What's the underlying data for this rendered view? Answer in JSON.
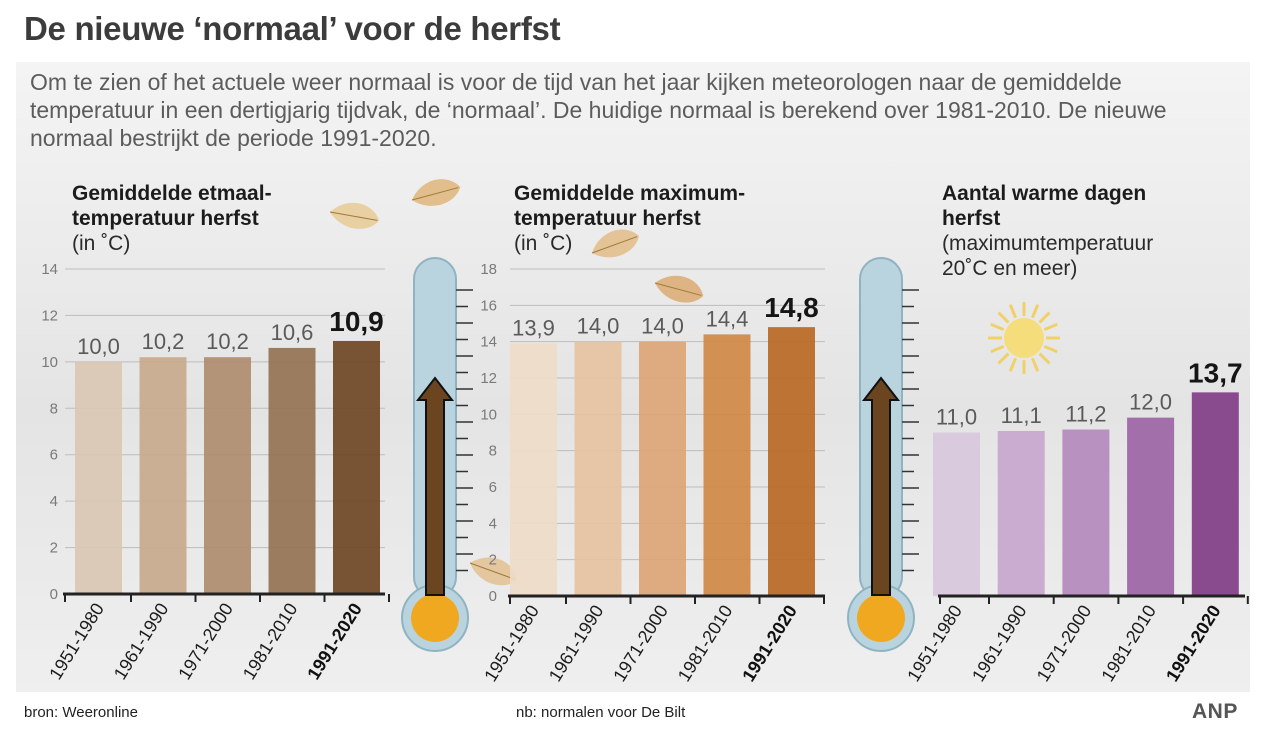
{
  "title": "De nieuwe ‘normaal’ voor de herfst",
  "intro": "Om te zien of het actuele weer normaal is voor de tijd van het jaar kijken meteorologen naar de gemiddelde temperatuur in een dertigjarig tijdvak, de ‘normaal’. De huidige normaal is berekend over 1981-2010. De nieuwe normaal bestrijkt de periode 1991-2020.",
  "footer": {
    "source": "bron:  Weeronline",
    "note": "nb: normalen voor De Bilt",
    "logo": "ANP"
  },
  "colors": {
    "brown": [
      "#d9c6b2",
      "#c6a98b",
      "#ae8b6b",
      "#93704f",
      "#6b4420"
    ],
    "orange": [
      "#eedcc8",
      "#e6c29f",
      "#dda373",
      "#cf8643",
      "#b8661f"
    ],
    "purple": [
      "#d8c6dc",
      "#c6a5cd",
      "#b487bd",
      "#9a62a4",
      "#7f3884"
    ],
    "thermometer_fill": "#f0a820",
    "thermometer_glass": "#b9d4de"
  },
  "icons": [
    "leaf-icon",
    "thermometer-icon",
    "sun-icon"
  ],
  "chart_data": [
    {
      "type": "bar",
      "title_lines": [
        "Gemiddelde etmaal-",
        "temperatuur herfst"
      ],
      "subtitle_lines": [
        "(in ˚C)"
      ],
      "categories": [
        "1951-1980",
        "1961-1990",
        "1971-2000",
        "1981-2010",
        "1991-2020"
      ],
      "values": [
        10.0,
        10.2,
        10.2,
        10.6,
        10.9
      ],
      "value_labels": [
        "10,0",
        "10,2",
        "10,2",
        "10,6",
        "10,9"
      ],
      "highlight_index": 4,
      "ylim": [
        0,
        14
      ],
      "yticks": [
        0,
        2,
        4,
        6,
        8,
        10,
        12,
        14
      ],
      "ytick_labels": [
        "0",
        "2",
        "4",
        "6",
        "8",
        "10",
        "12",
        "14"
      ],
      "grid": true
    },
    {
      "type": "bar",
      "title_lines": [
        "Gemiddelde maximum-",
        "temperatuur herfst"
      ],
      "subtitle_lines": [
        "(in ˚C)"
      ],
      "categories": [
        "1951-1980",
        "1961-1990",
        "1971-2000",
        "1981-2010",
        "1991-2020"
      ],
      "values": [
        13.9,
        14.0,
        14.0,
        14.4,
        14.8
      ],
      "value_labels": [
        "13,9",
        "14,0",
        "14,0",
        "14,4",
        "14,8"
      ],
      "highlight_index": 4,
      "ylim": [
        0,
        18
      ],
      "yticks": [
        0,
        2,
        4,
        6,
        8,
        10,
        12,
        14,
        16,
        18
      ],
      "ytick_labels": [
        "0",
        "2",
        "4",
        "6",
        "8",
        "10",
        "12",
        "14",
        "16",
        "18"
      ],
      "grid": true
    },
    {
      "type": "bar",
      "title_lines": [
        "Aantal warme dagen",
        "herfst"
      ],
      "subtitle_lines": [
        "(maximumtemperatuur",
        "20˚C en meer)"
      ],
      "categories": [
        "1951-1980",
        "1961-1990",
        "1971-2000",
        "1981-2010",
        "1991-2020"
      ],
      "values": [
        11.0,
        11.1,
        11.2,
        12.0,
        13.7
      ],
      "value_labels": [
        "11,0",
        "11,1",
        "11,2",
        "12,0",
        "13,7"
      ],
      "highlight_index": 4,
      "ylim": [
        0,
        22
      ],
      "yticks": [],
      "ytick_labels": [],
      "grid": false
    }
  ]
}
